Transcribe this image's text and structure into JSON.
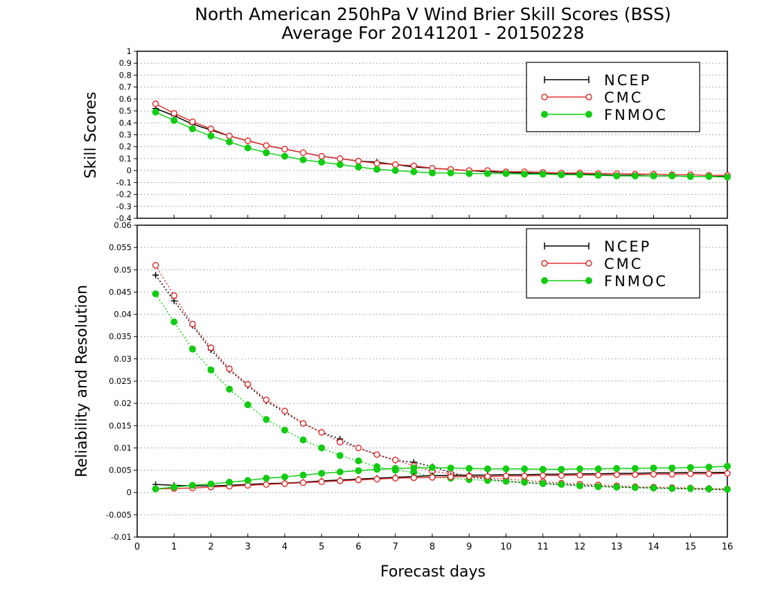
{
  "title_line1": "North American 250hPa V Wind Brier Skill Scores (BSS)",
  "title_line2": "Average For 20141201 - 20150228",
  "xlabel": "Forecast days",
  "colors": {
    "NCEP": "#000000",
    "CMC": "#e03030",
    "FNMOC": "#12cc12"
  },
  "chart_data": [
    {
      "type": "line",
      "ylabel": "Skill Scores",
      "ylim": [
        -0.4,
        1
      ],
      "yticks": [
        "1",
        "0.9",
        "0.8",
        "0.7",
        "0.6",
        "0.5",
        "0.4",
        "0.3",
        "0.2",
        "0.1",
        "0",
        "-0.1",
        "-0.2",
        "-0.3",
        "-0.4"
      ],
      "xlim": [
        0,
        16
      ],
      "grid": true,
      "legend_position": "top-right",
      "x": [
        0.5,
        1,
        1.5,
        2,
        2.5,
        3,
        3.5,
        4,
        4.5,
        5,
        5.5,
        6,
        6.5,
        7,
        7.5,
        8,
        8.5,
        9,
        9.5,
        10,
        10.5,
        11,
        11.5,
        12,
        12.5,
        13,
        13.5,
        14,
        14.5,
        15,
        15.5,
        16
      ],
      "series": [
        {
          "name": "NCEP",
          "marker": "plus",
          "style": "solid",
          "values": [
            0.52,
            0.46,
            0.39,
            0.34,
            0.29,
            0.25,
            0.21,
            0.18,
            0.15,
            0.12,
            0.1,
            0.08,
            0.07,
            0.05,
            0.03,
            0.02,
            0.01,
            0.0,
            -0.01,
            -0.015,
            -0.02,
            -0.025,
            -0.03,
            -0.03,
            -0.035,
            -0.04,
            -0.04,
            -0.045,
            -0.045,
            -0.05,
            -0.05,
            -0.05
          ]
        },
        {
          "name": "CMC",
          "marker": "open-circle",
          "style": "solid",
          "values": [
            0.56,
            0.48,
            0.41,
            0.35,
            0.29,
            0.25,
            0.21,
            0.18,
            0.15,
            0.12,
            0.1,
            0.08,
            0.06,
            0.05,
            0.04,
            0.02,
            0.01,
            0.0,
            0.0,
            -0.01,
            -0.01,
            -0.015,
            -0.02,
            -0.02,
            -0.025,
            -0.025,
            -0.03,
            -0.03,
            -0.035,
            -0.035,
            -0.04,
            -0.04
          ]
        },
        {
          "name": "FNMOC",
          "marker": "filled-circle",
          "style": "solid",
          "values": [
            0.49,
            0.42,
            0.35,
            0.29,
            0.24,
            0.19,
            0.15,
            0.12,
            0.09,
            0.07,
            0.05,
            0.03,
            0.01,
            0.0,
            -0.01,
            -0.02,
            -0.02,
            -0.025,
            -0.025,
            -0.025,
            -0.03,
            -0.03,
            -0.035,
            -0.035,
            -0.04,
            -0.045,
            -0.045,
            -0.045,
            -0.045,
            -0.05,
            -0.05,
            -0.055
          ]
        }
      ]
    },
    {
      "type": "line",
      "ylabel": "Reliability and Resolution",
      "ylim": [
        -0.01,
        0.06
      ],
      "yticks": [
        "0.06",
        "0.055",
        "0.05",
        "0.045",
        "0.04",
        "0.035",
        "0.03",
        "0.025",
        "0.02",
        "0.015",
        "0.01",
        "0.005",
        "0",
        "-0.005",
        "-0.01"
      ],
      "xlim": [
        0,
        16
      ],
      "xticks": [
        "0",
        "1",
        "2",
        "3",
        "4",
        "5",
        "6",
        "7",
        "8",
        "9",
        "10",
        "11",
        "12",
        "13",
        "14",
        "15",
        "16"
      ],
      "grid": true,
      "legend_position": "top-right",
      "x": [
        0.5,
        1,
        1.5,
        2,
        2.5,
        3,
        3.5,
        4,
        4.5,
        5,
        5.5,
        6,
        6.5,
        7,
        7.5,
        8,
        8.5,
        9,
        9.5,
        10,
        10.5,
        11,
        11.5,
        12,
        12.5,
        13,
        13.5,
        14,
        14.5,
        15,
        15.5,
        16
      ],
      "series": [
        {
          "name": "NCEP",
          "kind": "reliability",
          "marker": "plus",
          "style": "dotted",
          "values": [
            0.0488,
            0.043,
            0.0375,
            0.032,
            0.0275,
            0.024,
            0.0205,
            0.018,
            0.0155,
            0.0135,
            0.012,
            0.01,
            0.0085,
            0.0072,
            0.0068,
            0.0058,
            0.0045,
            0.0035,
            0.003,
            0.0025,
            0.0022,
            0.002,
            0.0018,
            0.0016,
            0.0014,
            0.0012,
            0.0011,
            0.001,
            0.0009,
            0.0008,
            0.0007,
            0.0006
          ]
        },
        {
          "name": "CMC",
          "kind": "reliability",
          "marker": "open-circle",
          "style": "dotted",
          "values": [
            0.051,
            0.0442,
            0.0378,
            0.0325,
            0.0278,
            0.0243,
            0.0208,
            0.0183,
            0.0155,
            0.0135,
            0.0113,
            0.01,
            0.0085,
            0.0073,
            0.006,
            0.0048,
            0.0042,
            0.0037,
            0.0033,
            0.003,
            0.0027,
            0.0024,
            0.0021,
            0.0019,
            0.0017,
            0.0015,
            0.0013,
            0.0012,
            0.0011,
            0.001,
            0.0009,
            0.0008
          ]
        },
        {
          "name": "FNMOC",
          "kind": "reliability",
          "marker": "filled-circle",
          "style": "dotted",
          "values": [
            0.0446,
            0.0383,
            0.0322,
            0.0275,
            0.0232,
            0.0197,
            0.0164,
            0.014,
            0.0118,
            0.01,
            0.0083,
            0.0071,
            0.0058,
            0.005,
            0.0045,
            0.0035,
            0.0032,
            0.0029,
            0.0027,
            0.0025,
            0.0023,
            0.002,
            0.0018,
            0.0015,
            0.0013,
            0.0012,
            0.0011,
            0.001,
            0.0009,
            0.0009,
            0.0008,
            0.0007
          ]
        },
        {
          "name": "NCEP",
          "kind": "resolution",
          "marker": "plus",
          "style": "solid",
          "values": [
            0.0018,
            0.0016,
            0.0015,
            0.0015,
            0.0016,
            0.0018,
            0.002,
            0.0021,
            0.0023,
            0.0026,
            0.0028,
            0.003,
            0.0032,
            0.0034,
            0.0036,
            0.0038,
            0.0038,
            0.0039,
            0.0039,
            0.004,
            0.004,
            0.0041,
            0.0041,
            0.0042,
            0.0042,
            0.0043,
            0.0043,
            0.0044,
            0.0044,
            0.0045,
            0.0045,
            0.0045
          ]
        },
        {
          "name": "CMC",
          "kind": "resolution",
          "marker": "open-circle",
          "style": "solid",
          "values": [
            0.0008,
            0.0009,
            0.001,
            0.0012,
            0.0014,
            0.0016,
            0.0018,
            0.002,
            0.0022,
            0.0024,
            0.0026,
            0.0028,
            0.003,
            0.0032,
            0.0033,
            0.0034,
            0.0035,
            0.0036,
            0.0036,
            0.0037,
            0.0037,
            0.0038,
            0.0038,
            0.0039,
            0.0039,
            0.004,
            0.004,
            0.0041,
            0.0041,
            0.0042,
            0.0042,
            0.0043
          ]
        },
        {
          "name": "FNMOC",
          "kind": "resolution",
          "marker": "filled-circle",
          "style": "solid",
          "values": [
            0.0008,
            0.0012,
            0.0016,
            0.0019,
            0.0023,
            0.0027,
            0.0032,
            0.0035,
            0.0039,
            0.0043,
            0.0046,
            0.0049,
            0.0052,
            0.0054,
            0.0055,
            0.0056,
            0.0055,
            0.0054,
            0.0053,
            0.0053,
            0.0053,
            0.0052,
            0.0052,
            0.0053,
            0.0053,
            0.0054,
            0.0054,
            0.0055,
            0.0055,
            0.0056,
            0.0057,
            0.0059
          ]
        }
      ]
    }
  ]
}
